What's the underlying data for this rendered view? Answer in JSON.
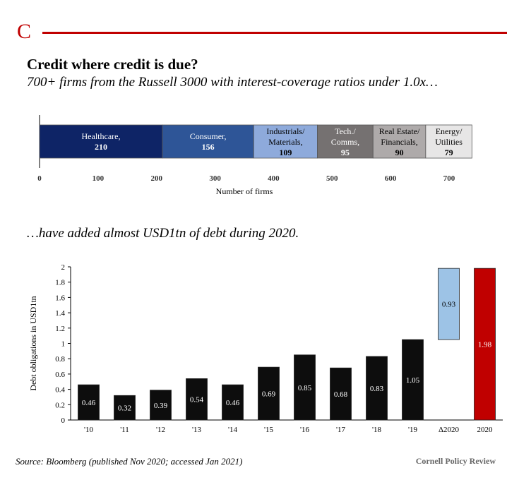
{
  "panel_letter": "C",
  "title": "Credit where credit is due?",
  "subtitle": "700+ firms from the Russell 3000 with interest-coverage ratios under 1.0x…",
  "subtitle2": "…have added almost USD1tn of debt during 2020.",
  "source": "Source: Bloomberg (published Nov 2020; accessed Jan 2021)",
  "credit": "Cornell Policy Review",
  "colors": {
    "accent": "#c00000",
    "healthcare": "#0e2466",
    "consumer": "#2e5597",
    "industrials": "#8eaadb",
    "tech": "#757171",
    "real_estate": "#aeaaaa",
    "energy": "#e7e6e6",
    "debt_bars": "#0d0d0d",
    "delta": "#9dc3e6",
    "total_2020": "#c00000"
  },
  "chart_data": [
    {
      "type": "bar",
      "orientation": "horizontal-stacked",
      "xlabel": "Number of firms",
      "xlim": [
        0,
        700
      ],
      "xticks": [
        "0",
        "100",
        "200",
        "300",
        "400",
        "500",
        "600",
        "700"
      ],
      "segments": [
        {
          "label": [
            "Healthcare,"
          ],
          "value": 210
        },
        {
          "label": [
            "Consumer,"
          ],
          "value": 156
        },
        {
          "label": [
            "Industrials/",
            "Materials,"
          ],
          "value": 109
        },
        {
          "label": [
            "Tech./",
            "Comms,"
          ],
          "value": 95
        },
        {
          "label": [
            "Real Estate/",
            "Financials,"
          ],
          "value": 90
        },
        {
          "label": [
            "Energy/",
            "Utilities"
          ],
          "value": 79
        }
      ]
    },
    {
      "type": "bar",
      "ylabel": "Debt obligations in USD1tn",
      "ylim": [
        0,
        2
      ],
      "yticks": [
        "0",
        "0.2",
        "0.4",
        "0.6",
        "0.8",
        "1",
        "1.2",
        "1.4",
        "1.6",
        "1.8",
        "2"
      ],
      "categories": [
        "'10",
        "'11",
        "'12",
        "'13",
        "'14",
        "'15",
        "'16",
        "'17",
        "'18",
        "'19",
        "Δ2020",
        "2020"
      ],
      "values": [
        0.46,
        0.32,
        0.39,
        0.54,
        0.46,
        0.69,
        0.85,
        0.68,
        0.83,
        1.05,
        0.93,
        1.98
      ],
      "value_labels": [
        "0.46",
        "0.32",
        "0.39",
        "0.54",
        "0.46",
        "0.69",
        "0.85",
        "0.68",
        "0.83",
        "1.05",
        "0.93",
        "1.98"
      ],
      "delta_base": 1.05
    }
  ]
}
